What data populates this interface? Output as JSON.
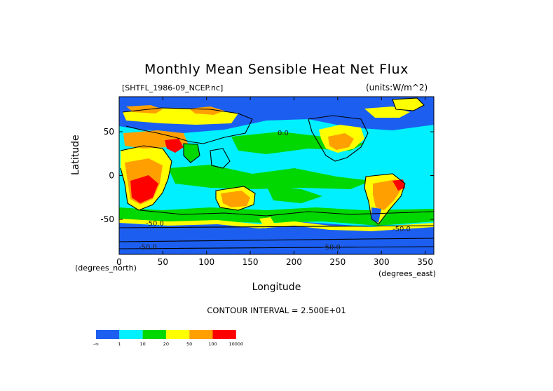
{
  "chart": {
    "title": "Monthly Mean Sensible Heat Net Flux",
    "file_label": "[SHTFL_1986-09_NCEP.nc]",
    "units_label": "(units:W/m^2)",
    "y_axis_label": "Latitude",
    "x_axis_label": "Longitude",
    "y_axis_subtitle": "(degrees_north)",
    "x_axis_subtitle": "(degrees_east)",
    "contour_interval": "CONTOUR INTERVAL = 2.500E+01",
    "map_contour_labels": [
      "0.0",
      "-50.0",
      "-50.0",
      "-50.0",
      "-50.0"
    ]
  },
  "chart_data": {
    "type": "heatmap",
    "title": "Monthly Mean Sensible Heat Net Flux",
    "xlabel": "Longitude",
    "ylabel": "Latitude",
    "xlim": [
      0,
      360
    ],
    "ylim": [
      -90,
      90
    ],
    "x_ticks": [
      0,
      50,
      100,
      150,
      200,
      250,
      300,
      350
    ],
    "y_ticks": [
      50,
      0,
      -50
    ],
    "x_tick_labels": [
      "0",
      "50",
      "100",
      "150",
      "200",
      "250",
      "300",
      "350"
    ],
    "y_tick_labels": [
      "50",
      "0",
      "-50"
    ],
    "legend": {
      "colors": [
        "#1c5ef0",
        "#00f0ff",
        "#00d800",
        "#ffff00",
        "#ffa000",
        "#ff0000"
      ],
      "boundaries": [
        "-∞",
        "1",
        "10",
        "20",
        "50",
        "100",
        "10000"
      ]
    }
  }
}
